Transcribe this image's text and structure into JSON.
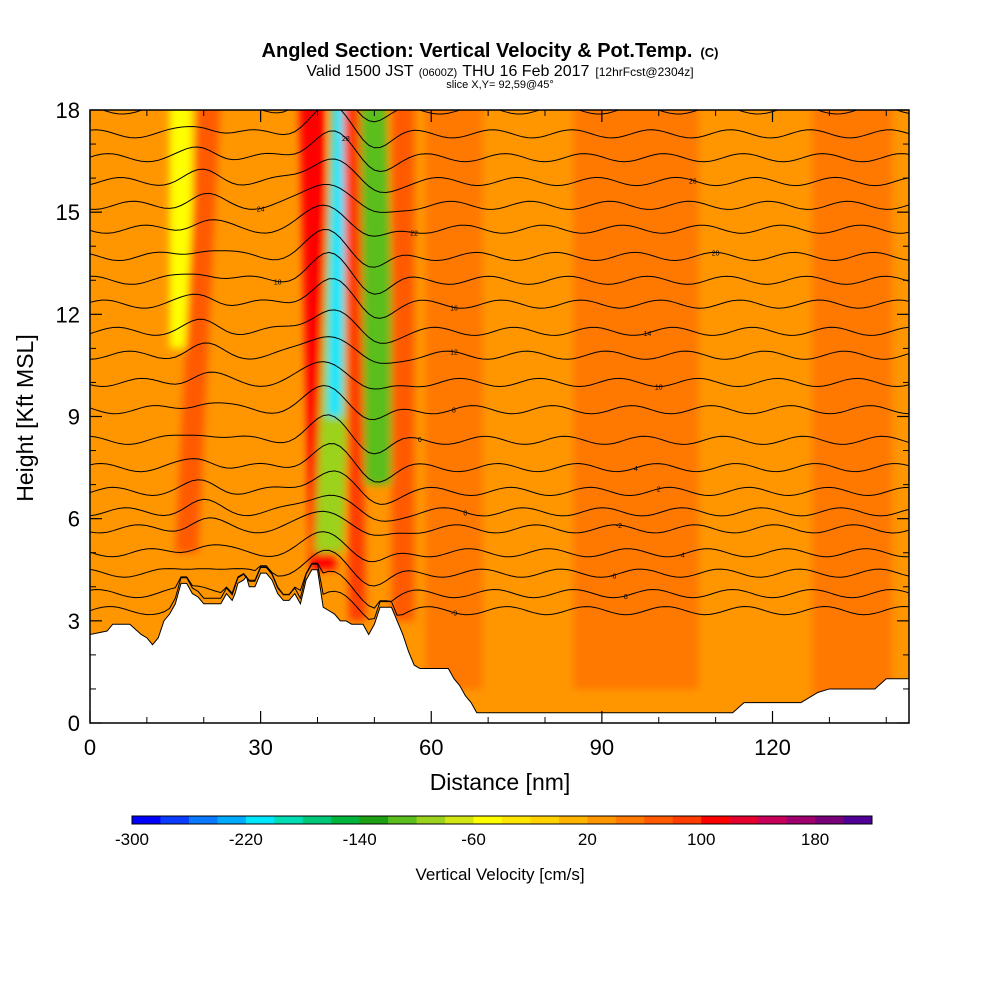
{
  "header": {
    "title": "Angled Section: Vertical Velocity & Pot.Temp.",
    "title_suffix": "(C)",
    "line2_a": "Valid 1500 JST",
    "line2_b": "(0600Z)",
    "line2_c": "THU 16 Feb 2017",
    "line2_d": "[12hrFcst@2304z]",
    "line3": "slice X,Y= 92,59@45°"
  },
  "chart_data": {
    "type": "heatmap",
    "xlabel": "Distance [nm]",
    "ylabel": "Height [Kft MSL]",
    "xlim": [
      0,
      144
    ],
    "ylim": [
      0,
      18
    ],
    "x_ticks": [
      0,
      30,
      60,
      90,
      120
    ],
    "x_tick_labels": [
      "0",
      "30",
      "60",
      "90",
      "120"
    ],
    "y_ticks": [
      0,
      3,
      6,
      9,
      12,
      15,
      18
    ],
    "y_tick_labels": [
      "0",
      "3",
      "6",
      "9",
      "12",
      "15",
      "18"
    ],
    "background_value_cm_s": 20,
    "velocity_bands": [
      {
        "x_top": 16,
        "x_bottom": 16,
        "y_bottom": 11,
        "width_nm": 4,
        "value": -60
      },
      {
        "x_top": 21,
        "x_bottom": 17,
        "y_bottom": 5,
        "width_nm": 4,
        "value": 60
      },
      {
        "x_top": 39,
        "x_bottom": 41,
        "y_bottom": 4.5,
        "width_nm": 4.5,
        "value": 100
      },
      {
        "x_top": 45,
        "x_bottom": 42,
        "y_bottom": 5,
        "width_nm": 5,
        "value": -100
      },
      {
        "x_top": 44,
        "x_bottom": 43,
        "y_bottom": 9,
        "width_nm": 2.5,
        "value": -220
      },
      {
        "x_top": 49,
        "x_bottom": 51,
        "y_bottom": 7,
        "width_nm": 6,
        "value": -120
      },
      {
        "x_top": 55,
        "x_bottom": 55,
        "y_bottom": 3,
        "width_nm": 4,
        "value": 60
      },
      {
        "x_top": 46,
        "x_bottom": 47,
        "y_bottom": 3,
        "width_nm": 3,
        "value": 80
      },
      {
        "x_top": 64,
        "x_bottom": 64,
        "y_bottom": 1,
        "width_nm": 10,
        "value": 40
      },
      {
        "x_top": 96,
        "x_bottom": 96,
        "y_bottom": 1,
        "width_nm": 22,
        "value": 40
      },
      {
        "x_top": 134,
        "x_bottom": 134,
        "y_bottom": 0,
        "width_nm": 14,
        "value": 40
      }
    ],
    "terrain": {
      "x": [
        0,
        3,
        4,
        7,
        9,
        10,
        11,
        12,
        13,
        14,
        15,
        16,
        17,
        18,
        19,
        20,
        20.5,
        21,
        22,
        23,
        24,
        25,
        25.5,
        26,
        27,
        27.5,
        28,
        29,
        30,
        31,
        32,
        33,
        34,
        35,
        36,
        37,
        38,
        39,
        40,
        41,
        42,
        43,
        44,
        45,
        46,
        47,
        48,
        49,
        50,
        51,
        52,
        53,
        54,
        55,
        56,
        57,
        58,
        59,
        60,
        61,
        62,
        63,
        64,
        65,
        66,
        67,
        68,
        69,
        70,
        75,
        80,
        85,
        90,
        95,
        100,
        105,
        110,
        113,
        115,
        120,
        125,
        128,
        130,
        135,
        138,
        140,
        144
      ],
      "y": [
        2.6,
        2.7,
        2.9,
        2.9,
        2.6,
        2.5,
        2.3,
        2.5,
        3.0,
        3.2,
        3.5,
        4.1,
        4.1,
        3.8,
        3.7,
        3.5,
        3.5,
        3.5,
        3.5,
        3.5,
        3.8,
        3.6,
        3.8,
        4.1,
        4.2,
        4.3,
        4.0,
        4.0,
        4.4,
        4.4,
        4.2,
        3.8,
        3.6,
        3.6,
        3.8,
        3.5,
        4.2,
        4.5,
        4.5,
        3.4,
        3.3,
        3.2,
        3.0,
        3.0,
        2.9,
        2.9,
        2.9,
        2.6,
        2.9,
        3.4,
        3.4,
        3.4,
        3.0,
        2.6,
        2.1,
        1.7,
        1.6,
        1.6,
        1.6,
        1.6,
        1.6,
        1.6,
        1.3,
        1.1,
        0.8,
        0.6,
        0.3,
        0.3,
        0.3,
        0.3,
        0.3,
        0.3,
        0.3,
        0.3,
        0.3,
        0.3,
        0.3,
        0.3,
        0.6,
        0.6,
        0.6,
        0.9,
        1.0,
        1.0,
        1.0,
        1.3,
        1.3
      ]
    },
    "isentropes": [
      {
        "theta": "-9",
        "base_y": 3.3,
        "label_x": 64
      },
      {
        "theta": "-8",
        "base_y": 3.8,
        "label_x": 94
      },
      {
        "theta": "-6",
        "base_y": 4.4,
        "label_x": 92
      },
      {
        "theta": "-4",
        "base_y": 5.0,
        "label_x": 104
      },
      {
        "theta": "-2",
        "base_y": 5.7,
        "label_x": 93
      },
      {
        "theta": "0",
        "base_y": 6.2,
        "label_x": 66
      },
      {
        "theta": "2",
        "base_y": 6.8,
        "label_x": 100
      },
      {
        "theta": "4",
        "base_y": 7.5,
        "label_x": 96
      },
      {
        "theta": "6",
        "base_y": 8.3,
        "label_x": 58
      },
      {
        "theta": "8",
        "base_y": 9.2,
        "label_x": 64
      },
      {
        "theta": "10",
        "base_y": 10.0,
        "label_x": 100
      },
      {
        "theta": "12",
        "base_y": 10.8,
        "label_x": 64
      },
      {
        "theta": "14",
        "base_y": 11.5,
        "label_x": 98
      },
      {
        "theta": "16",
        "base_y": 12.3,
        "label_x": 64
      },
      {
        "theta": "18",
        "base_y": 13.0,
        "label_x": 33
      },
      {
        "theta": "20",
        "base_y": 13.7,
        "label_x": 110
      },
      {
        "theta": "22",
        "base_y": 14.5,
        "label_x": 57
      },
      {
        "theta": "24",
        "base_y": 15.2,
        "label_x": 30
      },
      {
        "theta": "26",
        "base_y": 15.9,
        "label_x": 106
      },
      {
        "theta": "28",
        "base_y": 16.6,
        "label_x": 45
      },
      {
        "theta": "30",
        "base_y": 17.3,
        "label_x": 120
      },
      {
        "theta": "32",
        "base_y": 18.0,
        "label_x": 130
      }
    ],
    "isentrope_labels_shown": [
      "-9",
      "-8",
      "-6",
      "-4",
      "-2",
      "0",
      "2",
      "4",
      "6",
      "8",
      "10",
      "12",
      "14",
      "16",
      "18",
      "20",
      "22",
      "24",
      "26",
      "28"
    ],
    "colorbar": {
      "label": "Vertical Velocity [cm/s]",
      "min": -300,
      "max": 220,
      "step": 20,
      "tick_values": [
        -300,
        -220,
        -140,
        -60,
        20,
        100,
        180
      ],
      "tick_labels": [
        "-300",
        "-220",
        "-140",
        "-60",
        "20",
        "100",
        "180"
      ],
      "colors": [
        "#0000ff",
        "#0a3cff",
        "#0a78ff",
        "#00aaff",
        "#00e6ff",
        "#00dcb4",
        "#00c878",
        "#00b43c",
        "#1ea014",
        "#5abe1e",
        "#9bd21e",
        "#d2e614",
        "#ffff00",
        "#ffe600",
        "#ffd200",
        "#ffb400",
        "#ff9600",
        "#ff7800",
        "#ff5a00",
        "#ff3c00",
        "#ff0000",
        "#e6002d",
        "#c8005a",
        "#a0006e",
        "#780078",
        "#500096"
      ]
    }
  }
}
